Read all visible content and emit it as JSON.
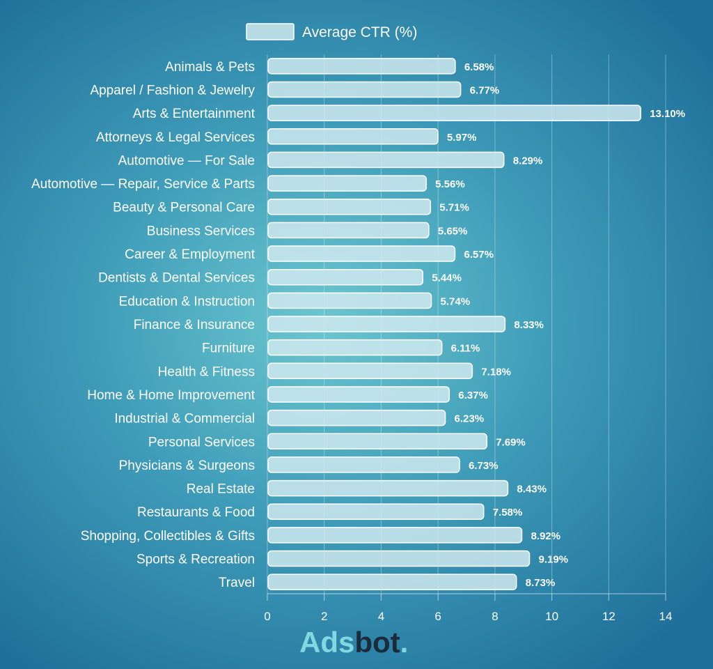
{
  "chart_data": {
    "type": "bar",
    "orientation": "horizontal",
    "categories": [
      "Animals & Pets",
      "Apparel / Fashion & Jewelry",
      "Arts & Entertainment",
      "Attorneys & Legal Services",
      "Automotive — For Sale",
      "Automotive — Repair, Service & Parts",
      "Beauty & Personal Care",
      "Business Services",
      "Career & Employment",
      "Dentists & Dental Services",
      "Education & Instruction",
      "Finance & Insurance",
      "Furniture",
      "Health & Fitness",
      "Home & Home Improvement",
      "Industrial & Commercial",
      "Personal Services",
      "Physicians & Surgeons",
      "Real Estate",
      "Restaurants & Food",
      "Shopping, Collectibles & Gifts",
      "Sports & Recreation",
      "Travel"
    ],
    "series": [
      {
        "name": "Average CTR (%)",
        "values": [
          6.58,
          6.77,
          13.1,
          5.97,
          8.29,
          5.56,
          5.71,
          5.65,
          6.57,
          5.44,
          5.74,
          8.33,
          6.11,
          7.18,
          6.37,
          6.23,
          7.69,
          6.73,
          8.43,
          7.58,
          8.92,
          9.19,
          8.73
        ],
        "labels": [
          "6.58%",
          "6.77%",
          "13.10%",
          "5.97%",
          "8.29%",
          "5.56%",
          "5.71%",
          "5.65%",
          "6.57%",
          "5.44%",
          "5.74%",
          "8.33%",
          "6.11%",
          "7.18%",
          "6.37%",
          "6.23%",
          "7.69%",
          "6.73%",
          "8.43%",
          "7.58%",
          "8.92%",
          "9.19%",
          "8.73%"
        ]
      }
    ],
    "xlim": [
      0,
      14
    ],
    "xticks": [
      0,
      2,
      4,
      6,
      8,
      10,
      12,
      14
    ],
    "grid": true,
    "legend_position": "top-center",
    "title": "",
    "xlabel": "",
    "ylabel": "",
    "colors": {
      "bar_fill": "#cfe9ee",
      "bar_stroke": "#ffffff",
      "text": "#ffffff"
    }
  },
  "logo": {
    "part1": "Ads",
    "part2": "bot",
    "dot": "."
  }
}
